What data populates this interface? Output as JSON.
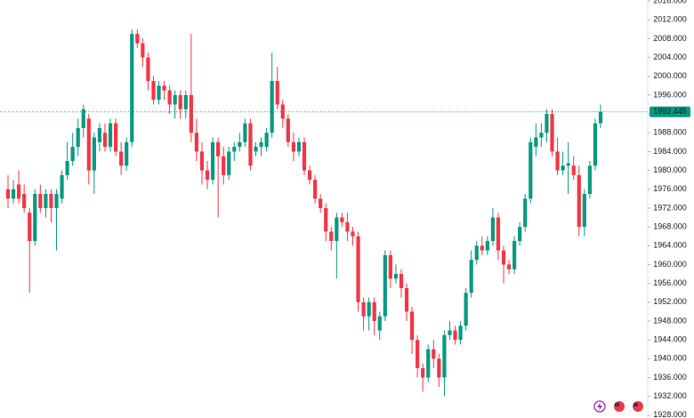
{
  "chart_data": {
    "type": "candlestick",
    "up_color": "#089981",
    "down_color": "#f23645",
    "ylim": [
      1927.4,
      2016.2
    ],
    "yticks": [
      {
        "value": 1928,
        "label": "1928.000"
      },
      {
        "value": 1932,
        "label": "1932.000"
      },
      {
        "value": 1936,
        "label": "1936.000"
      },
      {
        "value": 1940,
        "label": "1940.000"
      },
      {
        "value": 1944,
        "label": "1944.000"
      },
      {
        "value": 1948,
        "label": "1948.000"
      },
      {
        "value": 1952,
        "label": "1952.000"
      },
      {
        "value": 1956,
        "label": "1956.000"
      },
      {
        "value": 1960,
        "label": "1960.000"
      },
      {
        "value": 1964,
        "label": "1964.000"
      },
      {
        "value": 1968,
        "label": "1968.000"
      },
      {
        "value": 1972,
        "label": "1972.000"
      },
      {
        "value": 1976,
        "label": "1976.000"
      },
      {
        "value": 1980,
        "label": "1980.000"
      },
      {
        "value": 1984,
        "label": "1984.000"
      },
      {
        "value": 1988,
        "label": "1988.000"
      },
      {
        "value": 1992,
        "label": "1992.000"
      },
      {
        "value": 1996,
        "label": "1996.000"
      },
      {
        "value": 2000,
        "label": "2000.000"
      },
      {
        "value": 2004,
        "label": "2004.000"
      },
      {
        "value": 2008,
        "label": "2008.000"
      },
      {
        "value": 2012,
        "label": "2012.000"
      },
      {
        "value": 2016,
        "label": "2016.000"
      }
    ],
    "last_price": 1992.445,
    "ohlc": [
      [
        1976,
        1979,
        1972,
        1974
      ],
      [
        1974,
        1978,
        1973,
        1976
      ],
      [
        1977,
        1980,
        1973,
        1974
      ],
      [
        1975,
        1977,
        1971,
        1972
      ],
      [
        1971,
        1972,
        1954,
        1965
      ],
      [
        1965,
        1976,
        1964,
        1975
      ],
      [
        1975,
        1977,
        1971,
        1972
      ],
      [
        1972,
        1976,
        1970,
        1975
      ],
      [
        1975,
        1976,
        1969,
        1972
      ],
      [
        1972,
        1976,
        1963,
        1975
      ],
      [
        1974,
        1980,
        1973,
        1979
      ],
      [
        1979,
        1986,
        1978,
        1982
      ],
      [
        1982,
        1988,
        1981,
        1985
      ],
      [
        1985,
        1991,
        1983,
        1989
      ],
      [
        1989,
        1994,
        1987,
        1993
      ],
      [
        1991,
        1992,
        1977,
        1980
      ],
      [
        1980,
        1988,
        1975,
        1987
      ],
      [
        1986,
        1990,
        1984,
        1989
      ],
      [
        1988,
        1990,
        1984,
        1985
      ],
      [
        1985,
        1991,
        1984,
        1990
      ],
      [
        1990,
        1991,
        1983,
        1984
      ],
      [
        1984,
        1986,
        1979,
        1981
      ],
      [
        1981,
        1987,
        1980,
        1986
      ],
      [
        1986,
        2010,
        1985,
        2009
      ],
      [
        2009,
        2010,
        2006,
        2007
      ],
      [
        2007,
        2008,
        2002,
        2004
      ],
      [
        2004,
        2005,
        1997,
        1999
      ],
      [
        1999,
        2000,
        1994,
        1995
      ],
      [
        1995,
        1999,
        1994,
        1998
      ],
      [
        1998,
        1999,
        1995,
        1997
      ],
      [
        1997,
        1998,
        1992,
        1994
      ],
      [
        1994,
        1997,
        1991,
        1996
      ],
      [
        1996,
        1997,
        1991,
        1993
      ],
      [
        1993,
        1997,
        1991,
        1996
      ],
      [
        1996,
        2009,
        1986,
        1988
      ],
      [
        1988,
        1991,
        1982,
        1984
      ],
      [
        1984,
        1986,
        1977,
        1980
      ],
      [
        1980,
        1982,
        1976,
        1978
      ],
      [
        1978,
        1987,
        1977,
        1986
      ],
      [
        1986,
        1987,
        1970,
        1983
      ],
      [
        1983,
        1985,
        1977,
        1979
      ],
      [
        1979,
        1985,
        1978,
        1984
      ],
      [
        1984,
        1986,
        1982,
        1985
      ],
      [
        1985,
        1988,
        1984,
        1986
      ],
      [
        1986,
        1991,
        1985,
        1990
      ],
      [
        1990,
        1991,
        1980,
        1981
      ],
      [
        1984,
        1986,
        1983,
        1985
      ],
      [
        1985,
        1987,
        1983,
        1986
      ],
      [
        1985,
        1989,
        1984,
        1988
      ],
      [
        1988,
        2005,
        1987,
        1999
      ],
      [
        1999,
        2002,
        1993,
        1994
      ],
      [
        1994,
        1995,
        1989,
        1991
      ],
      [
        1991,
        1992,
        1985,
        1986
      ],
      [
        1986,
        1988,
        1982,
        1984
      ],
      [
        1984,
        1987,
        1983,
        1986
      ],
      [
        1986,
        1987,
        1979,
        1980
      ],
      [
        1980,
        1981,
        1977,
        1978
      ],
      [
        1978,
        1979,
        1973,
        1974
      ],
      [
        1974,
        1975,
        1971,
        1972
      ],
      [
        1972,
        1973,
        1965,
        1967
      ],
      [
        1967,
        1968,
        1963,
        1965
      ],
      [
        1965,
        1971,
        1957,
        1970
      ],
      [
        1970,
        1971,
        1968,
        1969
      ],
      [
        1969,
        1971,
        1965,
        1967
      ],
      [
        1967,
        1968,
        1964,
        1966
      ],
      [
        1966,
        1967,
        1950,
        1952
      ],
      [
        1952,
        1953,
        1946,
        1949
      ],
      [
        1949,
        1953,
        1946,
        1952
      ],
      [
        1952,
        1953,
        1945,
        1948
      ],
      [
        1946,
        1950,
        1944,
        1949
      ],
      [
        1949,
        1963,
        1948,
        1962
      ],
      [
        1962,
        1963,
        1955,
        1957
      ],
      [
        1957,
        1960,
        1956,
        1958
      ],
      [
        1958,
        1959,
        1953,
        1955
      ],
      [
        1955,
        1956,
        1948,
        1950
      ],
      [
        1950,
        1951,
        1941,
        1944
      ],
      [
        1944,
        1945,
        1936,
        1938
      ],
      [
        1938,
        1939,
        1933,
        1936
      ],
      [
        1936,
        1943,
        1935,
        1942
      ],
      [
        1942,
        1944,
        1938,
        1940
      ],
      [
        1940,
        1941,
        1934,
        1936
      ],
      [
        1936,
        1946,
        1932,
        1945
      ],
      [
        1945,
        1948,
        1944,
        1946
      ],
      [
        1946,
        1947,
        1943,
        1944
      ],
      [
        1944,
        1948,
        1943,
        1947
      ],
      [
        1947,
        1955,
        1946,
        1954
      ],
      [
        1954,
        1963,
        1953,
        1961
      ],
      [
        1961,
        1965,
        1960,
        1964
      ],
      [
        1964,
        1966,
        1962,
        1963
      ],
      [
        1963,
        1966,
        1962,
        1965
      ],
      [
        1965,
        1972,
        1964,
        1970
      ],
      [
        1970,
        1971,
        1961,
        1963
      ],
      [
        1963,
        1964,
        1956,
        1960
      ],
      [
        1960,
        1961,
        1958,
        1959
      ],
      [
        1959,
        1966,
        1958,
        1965
      ],
      [
        1965,
        1969,
        1964,
        1968
      ],
      [
        1968,
        1975,
        1967,
        1974
      ],
      [
        1974,
        1987,
        1973,
        1986
      ],
      [
        1985,
        1990,
        1983,
        1987
      ],
      [
        1987,
        1990,
        1985,
        1988
      ],
      [
        1988,
        1993,
        1986,
        1992
      ],
      [
        1992,
        1993,
        1983,
        1984
      ],
      [
        1984,
        1987,
        1979,
        1980
      ],
      [
        1980,
        1984,
        1979,
        1981
      ],
      [
        1981,
        1986,
        1975,
        1981.5
      ],
      [
        1981,
        1983,
        1978,
        1979
      ],
      [
        1979,
        1981,
        1966,
        1968
      ],
      [
        1968,
        1976,
        1966,
        1975
      ],
      [
        1975,
        1982,
        1974,
        1981
      ],
      [
        1981,
        1991,
        1980,
        1990
      ],
      [
        1990,
        1994,
        1989,
        1992.445
      ]
    ]
  }
}
